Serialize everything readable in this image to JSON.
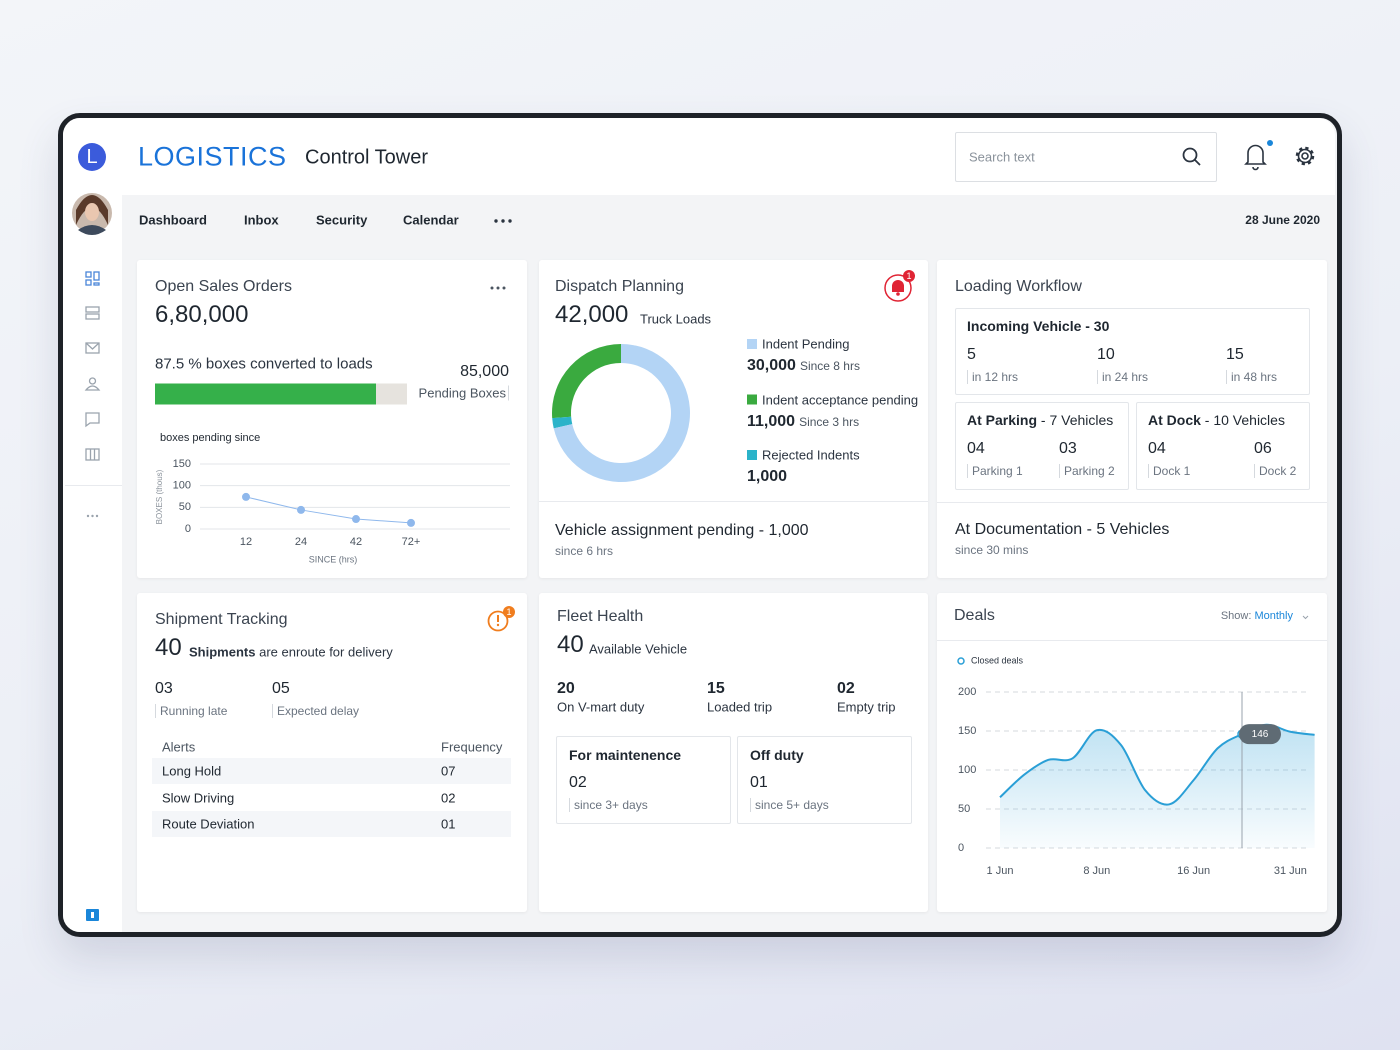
{
  "sidebar": {
    "logo": "L"
  },
  "header": {
    "brand": "LOGISTICS",
    "title": "Control Tower",
    "search_placeholder": "Search text"
  },
  "nav": {
    "items": [
      "Dashboard",
      "Inbox",
      "Security",
      "Calendar"
    ],
    "date": "28 June 2020"
  },
  "open_sales_orders": {
    "title": "Open Sales Orders",
    "total": "6,80,000",
    "converted": 87.5,
    "converted_text": "% boxes converted to loads",
    "progress_color": "#35b04a",
    "pending": "85,000",
    "pending_label": "Pending Boxes",
    "chart": {
      "type": "line",
      "title": "boxes pending since",
      "y_label": "BOXES (thous)",
      "x_label": "SINCE (hrs)",
      "categories": [
        "12",
        "24",
        "42",
        "72+"
      ],
      "values": [
        74,
        44,
        23,
        14
      ],
      "ylim": [
        0,
        150
      ],
      "yticks": [
        0,
        50,
        100,
        150
      ],
      "color": "#8fb8ec",
      "grid": true
    }
  },
  "dispatch_planning": {
    "title": "Dispatch Planning",
    "total": "42,000",
    "unit": "Truck Loads",
    "alert_count": "1",
    "chart": {
      "type": "donut",
      "categories": [
        "Indent Pending",
        "Indent acceptance pending",
        "Rejected Indents"
      ],
      "values": [
        30000,
        11000,
        1000
      ],
      "value_labels": [
        "30,000",
        "11,000",
        "1,000"
      ],
      "notes": [
        "Since 8 hrs",
        "Since 3 hrs",
        null
      ],
      "colors": [
        "#b3d4f5",
        "#3aaa3f",
        "#2bb3c9"
      ]
    },
    "footer_title": "Vehicle assignment pending - 1,000",
    "footer_note": "since 6 hrs"
  },
  "loading_workflow": {
    "title": "Loading Workflow",
    "incoming": {
      "label": "Incoming Vehicle - 30",
      "stats": [
        {
          "value": "5",
          "note": "in 12 hrs"
        },
        {
          "value": "10",
          "note": "in 24 hrs"
        },
        {
          "value": "15",
          "note": "in 48 hrs"
        }
      ]
    },
    "parking": {
      "label": "At Parking",
      "count": "- 7 Vehicles",
      "stats": [
        {
          "value": "04",
          "note": "Parking 1"
        },
        {
          "value": "03",
          "note": "Parking 2"
        }
      ]
    },
    "dock": {
      "label": "At Dock",
      "count": "- 10 Vehicles",
      "stats": [
        {
          "value": "04",
          "note": "Dock 1"
        },
        {
          "value": "06",
          "note": "Dock 2"
        }
      ]
    },
    "documentation": {
      "title": "At Documentation - 5 Vehicles",
      "note": "since 30 mins"
    }
  },
  "shipment_tracking": {
    "title": "Shipment Tracking",
    "alert_count": "1",
    "count": "40",
    "count_label": "Shipments",
    "count_text": "are enroute for delivery",
    "stats": [
      {
        "value": "03",
        "note": "Running late"
      },
      {
        "value": "05",
        "note": "Expected delay"
      }
    ],
    "table": {
      "headers": [
        "Alerts",
        "Frequency"
      ],
      "rows": [
        [
          "Long Hold",
          "07"
        ],
        [
          "Slow Driving",
          "02"
        ],
        [
          "Route Deviation",
          "01"
        ]
      ]
    }
  },
  "fleet_health": {
    "title": "Fleet Health",
    "count": "40",
    "count_label": "Available Vehicle",
    "stats": [
      {
        "value": "20",
        "note": "On V-mart duty"
      },
      {
        "value": "15",
        "note": "Loaded trip"
      },
      {
        "value": "02",
        "note": "Empty trip"
      }
    ],
    "boxes": [
      {
        "title": "For maintenence",
        "value": "02",
        "note": "since 3+ days"
      },
      {
        "title": "Off duty",
        "value": "01",
        "note": "since 5+ days"
      }
    ]
  },
  "deals": {
    "title": "Deals",
    "filter_label": "Show:",
    "filter_value": "Monthly",
    "chart": {
      "type": "area",
      "categories": [
        "1 Jun",
        null,
        null,
        null,
        "8 Jun",
        null,
        null,
        null,
        "16 Jun",
        null,
        null,
        null,
        "31 Jun",
        null
      ],
      "series": [
        {
          "name": "Closed deals",
          "color": "#2a9fd6",
          "values": [
            65,
            94,
            113,
            115,
            151,
            132,
            74,
            56,
            87,
            128,
            146,
            158,
            149,
            145
          ]
        }
      ],
      "ylim": [
        0,
        200
      ],
      "yticks": [
        0,
        50,
        100,
        150,
        200
      ],
      "grid": true
    }
  }
}
